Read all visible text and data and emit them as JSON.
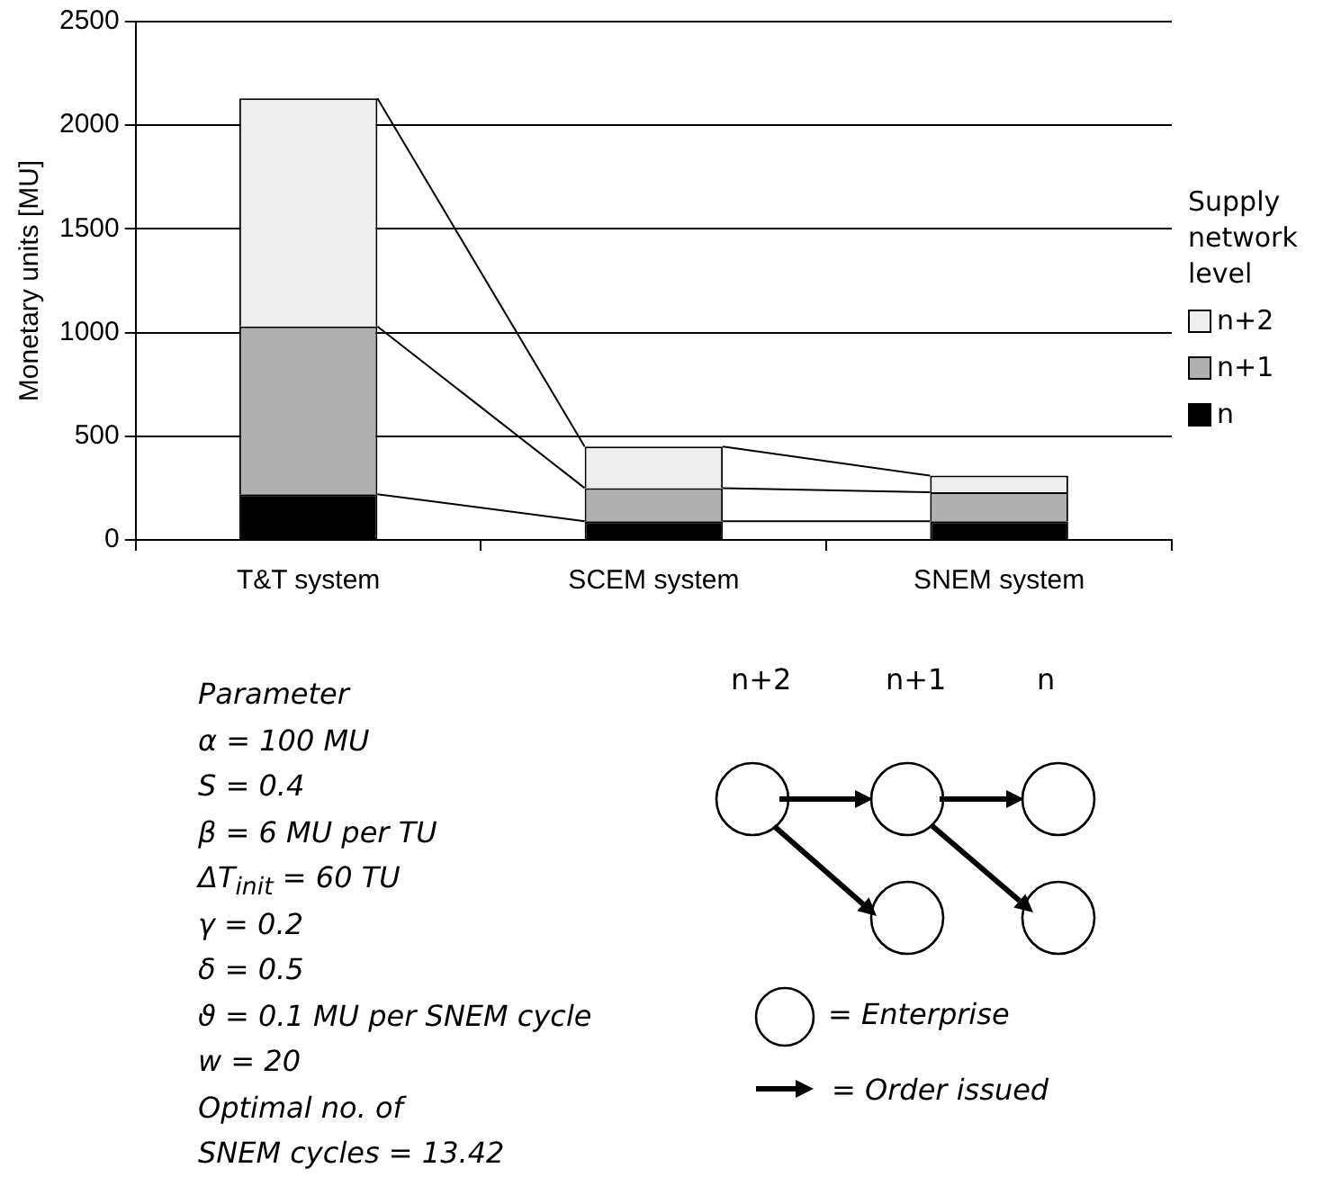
{
  "chart_data": {
    "type": "bar",
    "stacked": true,
    "ylabel": "Monetary units [MU]",
    "legend_title": "Supply network level",
    "legend": "right",
    "grid": "y",
    "categories": [
      "T&T system",
      "SCEM system",
      "SNEM system"
    ],
    "series": [
      {
        "name": "n",
        "color": "#000000",
        "values": [
          220,
          90,
          90
        ]
      },
      {
        "name": "n+1",
        "color": "#b0b0b0",
        "values": [
          810,
          160,
          140
        ]
      },
      {
        "name": "n+2",
        "color": "#eeeeee",
        "values": [
          1100,
          200,
          80
        ]
      }
    ],
    "ylim": [
      0,
      2500
    ],
    "yticks": [
      0,
      500,
      1000,
      1500,
      2000,
      2500
    ],
    "annotations": [
      "Parameter",
      "α = 100 MU",
      "S = 0.4",
      "β = 6 MU per TU",
      "ΔT$_{init}$ = 60 TU",
      "γ = 0.2",
      "δ = 0.5",
      "ϑ = 0.1 MU per SNEM cycle",
      "w = 20",
      "Optimal no. of",
      "SNEM cycles = 13.42",
      "n+2",
      "n+1",
      "n",
      "= Enterprise",
      "= Order issued"
    ]
  }
}
